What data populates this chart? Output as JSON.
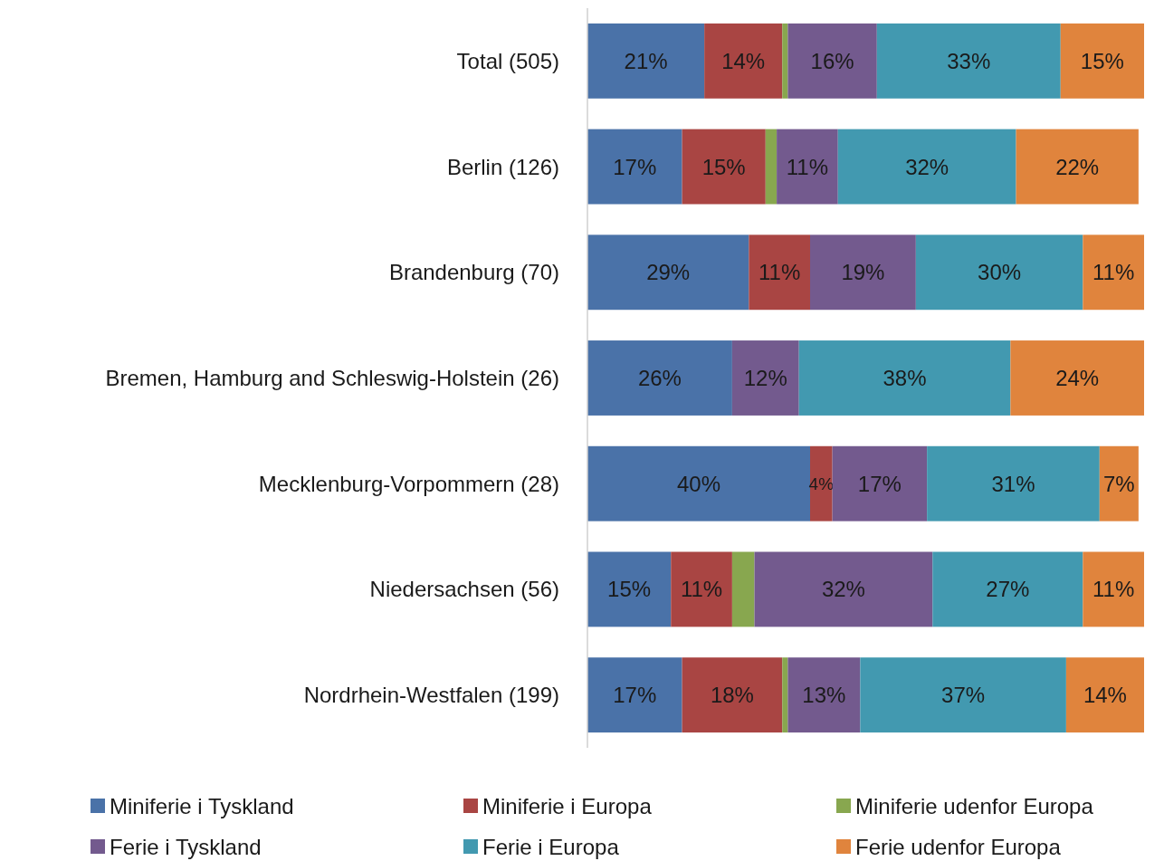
{
  "chart_data": {
    "type": "bar",
    "orientation": "horizontal",
    "stacked": true,
    "xlim": [
      0,
      100
    ],
    "tick_labels": "y",
    "legend": "bottom",
    "categories": [
      "Total (505)",
      "Berlin (126)",
      "Brandenburg (70)",
      "Bremen, Hamburg and Schleswig-Holstein (26)",
      "Mecklenburg-Vorpommern (28)",
      "Niedersachsen (56)",
      "Nordrhein-Westfalen (199)"
    ],
    "series": [
      {
        "name": "Miniferie i Tyskland",
        "color": "#4a72a8",
        "values": [
          21,
          17,
          29,
          26,
          40,
          15,
          17
        ],
        "value_labels": [
          "21%",
          "17%",
          "29%",
          "26%",
          "40%",
          "15%",
          "17%"
        ]
      },
      {
        "name": "Miniferie i Europa",
        "color": "#a94543",
        "values": [
          14,
          15,
          11,
          0,
          4,
          11,
          18
        ],
        "value_labels": [
          "14%",
          "15%",
          "11%",
          null,
          "4%",
          "11%",
          "18%"
        ]
      },
      {
        "name": "Miniferie udenfor Europa",
        "color": "#88a74f",
        "values": [
          1,
          2,
          0,
          0,
          0,
          4,
          1
        ],
        "value_labels": [
          null,
          null,
          null,
          null,
          null,
          null,
          null
        ]
      },
      {
        "name": "Ferie i Tyskland",
        "color": "#735a8e",
        "values": [
          16,
          11,
          19,
          12,
          17,
          32,
          13
        ],
        "value_labels": [
          "16%",
          "11%",
          "19%",
          "12%",
          "17%",
          "32%",
          "13%"
        ]
      },
      {
        "name": "Ferie i Europa",
        "color": "#4299b0",
        "values": [
          33,
          32,
          30,
          38,
          31,
          27,
          37
        ],
        "value_labels": [
          "33%",
          "32%",
          "30%",
          "38%",
          "31%",
          "27%",
          "37%"
        ]
      },
      {
        "name": "Ferie udenfor Europa",
        "color": "#e0843d",
        "values": [
          15,
          22,
          11,
          24,
          7,
          11,
          14
        ],
        "value_labels": [
          "15%",
          "22%",
          "11%",
          "24%",
          "7%",
          "11%",
          "14%"
        ]
      }
    ]
  }
}
